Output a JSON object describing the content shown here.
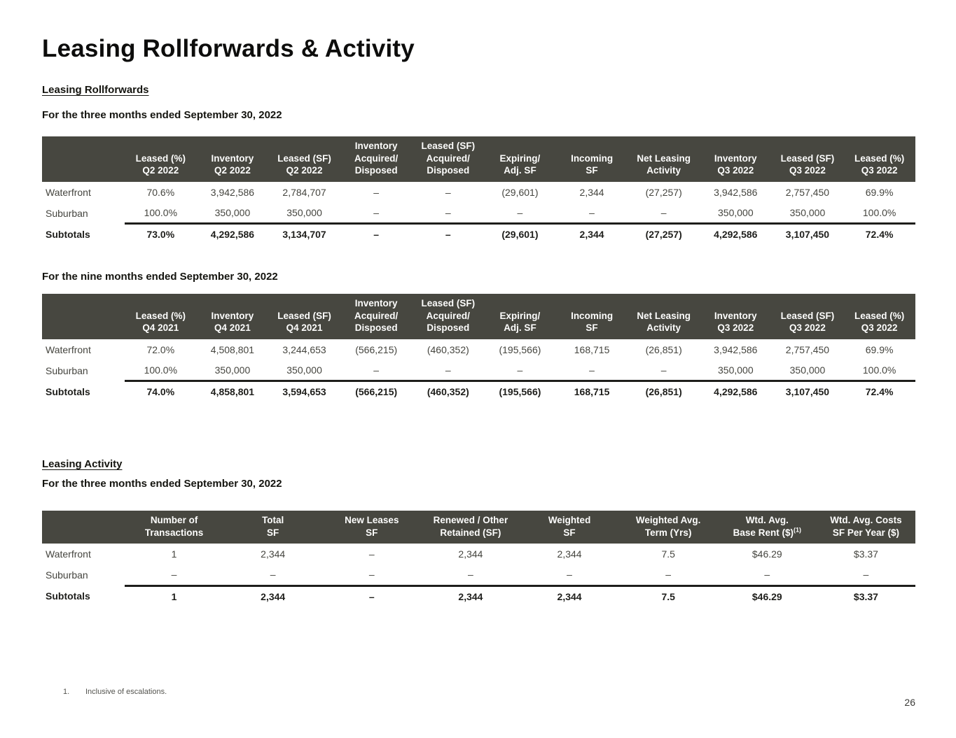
{
  "page": {
    "title": "Leasing Rollforwards & Activity",
    "page_number": "26",
    "footnote_index": "1.",
    "footnote_text": "Inclusive of escalations."
  },
  "colors": {
    "header_bg": "#474740",
    "header_text": "#fdfdfc",
    "body_text": "#45453f",
    "strong_text": "#1e1e1b"
  },
  "sections": [
    {
      "heading": "Leasing Rollforwards",
      "tables": [
        {
          "caption": "For the three months ended September 30, 2022",
          "columns": [
            "Leased (%)\nQ2 2022",
            "Inventory\nQ2 2022",
            "Leased (SF)\nQ2 2022",
            "Inventory\nAcquired/\nDisposed",
            "Leased (SF)\nAcquired/\nDisposed",
            "Expiring/\nAdj. SF",
            "Incoming\nSF",
            "Net Leasing\nActivity",
            "Inventory\nQ3 2022",
            "Leased (SF)\nQ3 2022",
            "Leased (%)\nQ3 2022"
          ],
          "rows": [
            {
              "label": "Waterfront",
              "subtotal": false,
              "values": [
                "70.6%",
                "3,942,586",
                "2,784,707",
                "–",
                "–",
                "(29,601)",
                "2,344",
                "(27,257)",
                "3,942,586",
                "2,757,450",
                "69.9%"
              ]
            },
            {
              "label": "Suburban",
              "subtotal": false,
              "values": [
                "100.0%",
                "350,000",
                "350,000",
                "–",
                "–",
                "–",
                "–",
                "–",
                "350,000",
                "350,000",
                "100.0%"
              ]
            },
            {
              "label": "Subtotals",
              "subtotal": true,
              "values": [
                "73.0%",
                "4,292,586",
                "3,134,707",
                "–",
                "–",
                "(29,601)",
                "2,344",
                "(27,257)",
                "4,292,586",
                "3,107,450",
                "72.4%"
              ]
            }
          ]
        },
        {
          "caption": "For the nine months ended September 30, 2022",
          "columns": [
            "Leased (%)\nQ4 2021",
            "Inventory\nQ4 2021",
            "Leased (SF)\nQ4 2021",
            "Inventory\nAcquired/\nDisposed",
            "Leased (SF)\nAcquired/\nDisposed",
            "Expiring/\nAdj. SF",
            "Incoming\nSF",
            "Net Leasing\nActivity",
            "Inventory\nQ3 2022",
            "Leased (SF)\nQ3 2022",
            "Leased (%)\nQ3 2022"
          ],
          "rows": [
            {
              "label": "Waterfront",
              "subtotal": false,
              "values": [
                "72.0%",
                "4,508,801",
                "3,244,653",
                "(566,215)",
                "(460,352)",
                "(195,566)",
                "168,715",
                "(26,851)",
                "3,942,586",
                "2,757,450",
                "69.9%"
              ]
            },
            {
              "label": "Suburban",
              "subtotal": false,
              "values": [
                "100.0%",
                "350,000",
                "350,000",
                "–",
                "–",
                "–",
                "–",
                "–",
                "350,000",
                "350,000",
                "100.0%"
              ]
            },
            {
              "label": "Subtotals",
              "subtotal": true,
              "values": [
                "74.0%",
                "4,858,801",
                "3,594,653",
                "(566,215)",
                "(460,352)",
                "(195,566)",
                "168,715",
                "(26,851)",
                "4,292,586",
                "3,107,450",
                "72.4%"
              ]
            }
          ]
        }
      ]
    },
    {
      "heading": "Leasing Activity",
      "tables": [
        {
          "caption": "For the three months ended September 30, 2022",
          "columns": [
            "Number of\nTransactions",
            "Total\nSF",
            "New Leases\nSF",
            "Renewed / Other\nRetained (SF)",
            "Weighted\nSF",
            "Weighted Avg.\nTerm (Yrs)",
            "Wtd. Avg.\nBase Rent ($)^(1)^",
            "Wtd. Avg. Costs\nSF Per Year ($)"
          ],
          "rows": [
            {
              "label": "Waterfront",
              "subtotal": false,
              "values": [
                "1",
                "2,344",
                "–",
                "2,344",
                "2,344",
                "7.5",
                "$46.29",
                "$3.37"
              ]
            },
            {
              "label": "Suburban",
              "subtotal": false,
              "values": [
                "–",
                "–",
                "–",
                "–",
                "–",
                "–",
                "–",
                "–"
              ]
            },
            {
              "label": "Subtotals",
              "subtotal": true,
              "values": [
                "1",
                "2,344",
                "–",
                "2,344",
                "2,344",
                "7.5",
                "$46.29",
                "$3.37"
              ]
            }
          ]
        }
      ]
    }
  ]
}
